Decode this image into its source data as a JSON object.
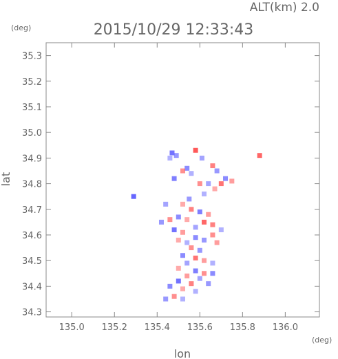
{
  "header": {
    "alt_label": "ALT(km) 2.0",
    "timestamp": "2015/10/29 12:33:43",
    "y_unit": "(deg)",
    "x_unit": "(deg)"
  },
  "colors": {
    "frame": "#888888",
    "text": "#666666",
    "positive": "#ff4c4c",
    "negative": "#5a5aff"
  },
  "chart_data": {
    "type": "heatmap",
    "xlabel": "lon",
    "ylabel": "lat",
    "xlim": [
      134.88,
      136.16
    ],
    "ylim": [
      34.28,
      35.35
    ],
    "xticks": [
      135.0,
      135.2,
      135.4,
      135.6,
      135.8,
      136.0
    ],
    "xtick_labels": [
      "135.0",
      "135.2",
      "135.4",
      "135.6",
      "135.8",
      "136.0"
    ],
    "yticks": [
      34.3,
      34.4,
      34.5,
      34.6,
      34.7,
      34.8,
      34.9,
      35.0,
      35.1,
      35.2,
      35.3
    ],
    "ytick_labels": [
      "34.3",
      "34.4",
      "34.5",
      "34.6",
      "34.7",
      "34.8",
      "34.9",
      "35.0",
      "35.1",
      "35.2",
      "35.3"
    ],
    "grid": false,
    "cells": [
      {
        "lon": 135.47,
        "lat": 34.92,
        "v": -0.8
      },
      {
        "lon": 135.49,
        "lat": 34.91,
        "v": -0.5
      },
      {
        "lon": 135.46,
        "lat": 34.9,
        "v": -0.3
      },
      {
        "lon": 135.58,
        "lat": 34.93,
        "v": 0.9
      },
      {
        "lon": 135.61,
        "lat": 34.9,
        "v": -0.4
      },
      {
        "lon": 135.54,
        "lat": 34.86,
        "v": -0.6
      },
      {
        "lon": 135.52,
        "lat": 34.85,
        "v": 0.5
      },
      {
        "lon": 135.56,
        "lat": 34.84,
        "v": -0.3
      },
      {
        "lon": 135.48,
        "lat": 34.82,
        "v": -0.7
      },
      {
        "lon": 135.66,
        "lat": 34.87,
        "v": 0.6
      },
      {
        "lon": 135.68,
        "lat": 34.85,
        "v": -0.5
      },
      {
        "lon": 135.72,
        "lat": 34.82,
        "v": -0.6
      },
      {
        "lon": 135.75,
        "lat": 34.81,
        "v": 0.4
      },
      {
        "lon": 135.7,
        "lat": 34.8,
        "v": 0.7
      },
      {
        "lon": 135.64,
        "lat": 34.8,
        "v": -0.4
      },
      {
        "lon": 135.67,
        "lat": 34.78,
        "v": 0.3
      },
      {
        "lon": 135.62,
        "lat": 34.76,
        "v": -0.3
      },
      {
        "lon": 135.6,
        "lat": 34.8,
        "v": 0.5
      },
      {
        "lon": 135.88,
        "lat": 34.91,
        "v": 0.8
      },
      {
        "lon": 135.29,
        "lat": 34.75,
        "v": -0.9
      },
      {
        "lon": 135.55,
        "lat": 34.74,
        "v": -0.5
      },
      {
        "lon": 135.52,
        "lat": 34.72,
        "v": 0.3
      },
      {
        "lon": 135.44,
        "lat": 34.72,
        "v": -0.4
      },
      {
        "lon": 135.56,
        "lat": 34.7,
        "v": 0.6
      },
      {
        "lon": 135.6,
        "lat": 34.69,
        "v": -0.7
      },
      {
        "lon": 135.64,
        "lat": 34.68,
        "v": 0.4
      },
      {
        "lon": 135.5,
        "lat": 34.67,
        "v": -0.6
      },
      {
        "lon": 135.46,
        "lat": 34.66,
        "v": 0.5
      },
      {
        "lon": 135.42,
        "lat": 34.65,
        "v": -0.5
      },
      {
        "lon": 135.54,
        "lat": 34.66,
        "v": 0.3
      },
      {
        "lon": 135.62,
        "lat": 34.65,
        "v": 0.8
      },
      {
        "lon": 135.66,
        "lat": 34.64,
        "v": 0.6
      },
      {
        "lon": 135.58,
        "lat": 34.63,
        "v": -0.4
      },
      {
        "lon": 135.48,
        "lat": 34.62,
        "v": -0.8
      },
      {
        "lon": 135.52,
        "lat": 34.61,
        "v": 0.4
      },
      {
        "lon": 135.7,
        "lat": 34.62,
        "v": -0.3
      },
      {
        "lon": 135.66,
        "lat": 34.6,
        "v": 0.5
      },
      {
        "lon": 135.58,
        "lat": 34.59,
        "v": -0.6
      },
      {
        "lon": 135.5,
        "lat": 34.58,
        "v": 0.3
      },
      {
        "lon": 135.62,
        "lat": 34.58,
        "v": -0.5
      },
      {
        "lon": 135.54,
        "lat": 34.57,
        "v": -0.3
      },
      {
        "lon": 135.68,
        "lat": 34.57,
        "v": 0.4
      },
      {
        "lon": 135.56,
        "lat": 34.55,
        "v": 0.5
      },
      {
        "lon": 135.6,
        "lat": 34.54,
        "v": -0.5
      },
      {
        "lon": 135.52,
        "lat": 34.52,
        "v": -0.6
      },
      {
        "lon": 135.58,
        "lat": 34.51,
        "v": 0.7
      },
      {
        "lon": 135.62,
        "lat": 34.5,
        "v": 0.4
      },
      {
        "lon": 135.54,
        "lat": 34.49,
        "v": -0.4
      },
      {
        "lon": 135.66,
        "lat": 34.49,
        "v": -0.3
      },
      {
        "lon": 135.5,
        "lat": 34.47,
        "v": 0.3
      },
      {
        "lon": 135.58,
        "lat": 34.46,
        "v": -0.7
      },
      {
        "lon": 135.62,
        "lat": 34.45,
        "v": 0.5
      },
      {
        "lon": 135.66,
        "lat": 34.45,
        "v": -0.6
      },
      {
        "lon": 135.54,
        "lat": 34.44,
        "v": 0.4
      },
      {
        "lon": 135.6,
        "lat": 34.43,
        "v": -0.4
      },
      {
        "lon": 135.5,
        "lat": 34.42,
        "v": -0.8
      },
      {
        "lon": 135.56,
        "lat": 34.41,
        "v": 0.6
      },
      {
        "lon": 135.64,
        "lat": 34.41,
        "v": -0.5
      },
      {
        "lon": 135.46,
        "lat": 34.4,
        "v": -0.6
      },
      {
        "lon": 135.52,
        "lat": 34.39,
        "v": 0.3
      },
      {
        "lon": 135.58,
        "lat": 34.38,
        "v": -0.3
      },
      {
        "lon": 135.48,
        "lat": 34.36,
        "v": 0.5
      },
      {
        "lon": 135.44,
        "lat": 34.35,
        "v": -0.5
      },
      {
        "lon": 135.52,
        "lat": 34.35,
        "v": -0.3
      }
    ]
  }
}
